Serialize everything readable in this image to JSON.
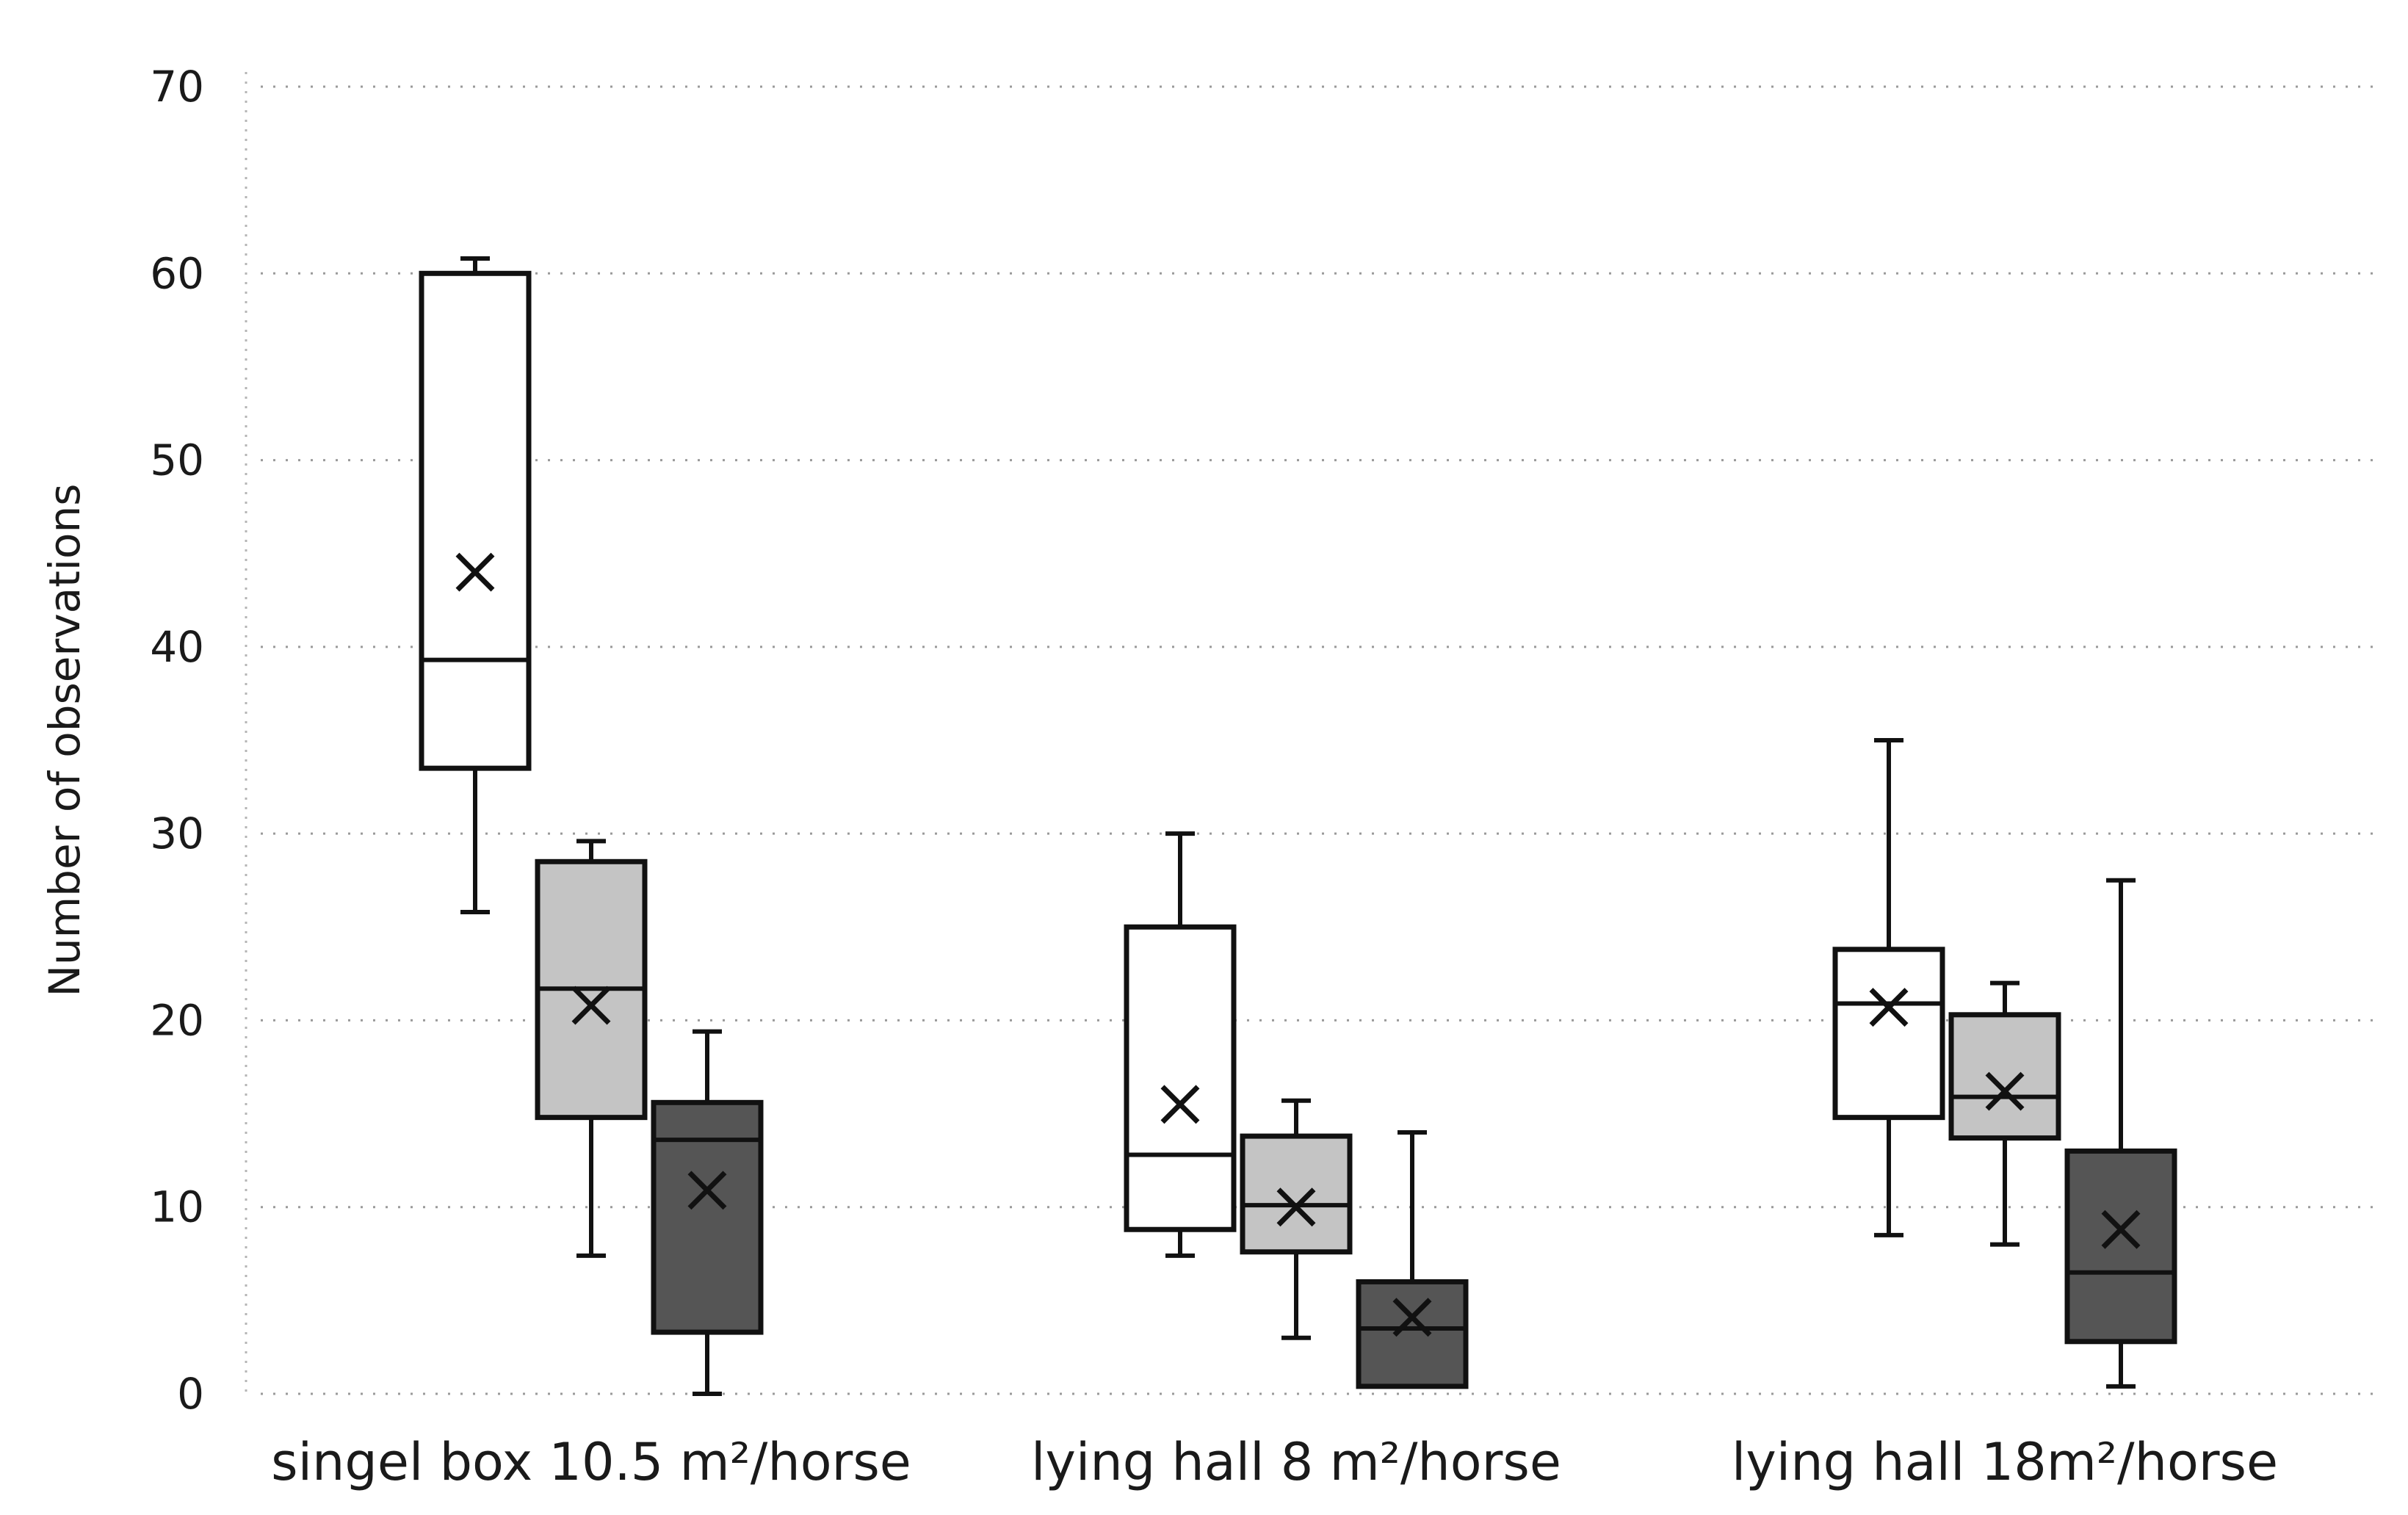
{
  "chart_data": {
    "type": "boxplot",
    "title": "",
    "xlabel": "",
    "ylabel": "Number of observations",
    "ylim": [
      0,
      70
    ],
    "yticks": [
      0,
      10,
      20,
      30,
      40,
      50,
      60,
      70
    ],
    "grid": true,
    "legend": null,
    "categories": [
      "singel box 10.5 m²/horse",
      "lying hall 8 m²/horse",
      "lying hall 18m²/horse"
    ],
    "series_fills": [
      "#ffffff",
      "#c4c4c4",
      "#555555"
    ],
    "groups": [
      {
        "category": "singel box 10.5 m²/horse",
        "boxes": [
          {
            "min": 25.8,
            "q1": 33.5,
            "median": 39.3,
            "q3": 60.0,
            "max": 60.8,
            "mean": 44.0
          },
          {
            "min": 7.4,
            "q1": 14.8,
            "median": 21.7,
            "q3": 28.5,
            "max": 29.6,
            "mean": 20.8
          },
          {
            "min": 0.0,
            "q1": 3.3,
            "median": 13.6,
            "q3": 15.6,
            "max": 19.4,
            "mean": 10.9
          }
        ]
      },
      {
        "category": "lying hall 8 m²/horse",
        "boxes": [
          {
            "min": 7.4,
            "q1": 8.8,
            "median": 12.8,
            "q3": 25.0,
            "max": 30.0,
            "mean": 15.5
          },
          {
            "min": 3.0,
            "q1": 7.6,
            "median": 10.1,
            "q3": 13.8,
            "max": 15.7,
            "mean": 10.0
          },
          {
            "min": 0.4,
            "q1": 0.4,
            "median": 3.5,
            "q3": 6.0,
            "max": 14.0,
            "mean": 4.1
          }
        ]
      },
      {
        "category": "lying hall 18m²/horse",
        "boxes": [
          {
            "min": 8.5,
            "q1": 14.8,
            "median": 20.9,
            "q3": 23.8,
            "max": 35.0,
            "mean": 20.7
          },
          {
            "min": 8.0,
            "q1": 13.7,
            "median": 15.9,
            "q3": 20.3,
            "max": 22.0,
            "mean": 16.2
          },
          {
            "min": 0.4,
            "q1": 2.8,
            "median": 6.5,
            "q3": 13.0,
            "max": 27.5,
            "mean": 8.8
          }
        ]
      }
    ]
  }
}
